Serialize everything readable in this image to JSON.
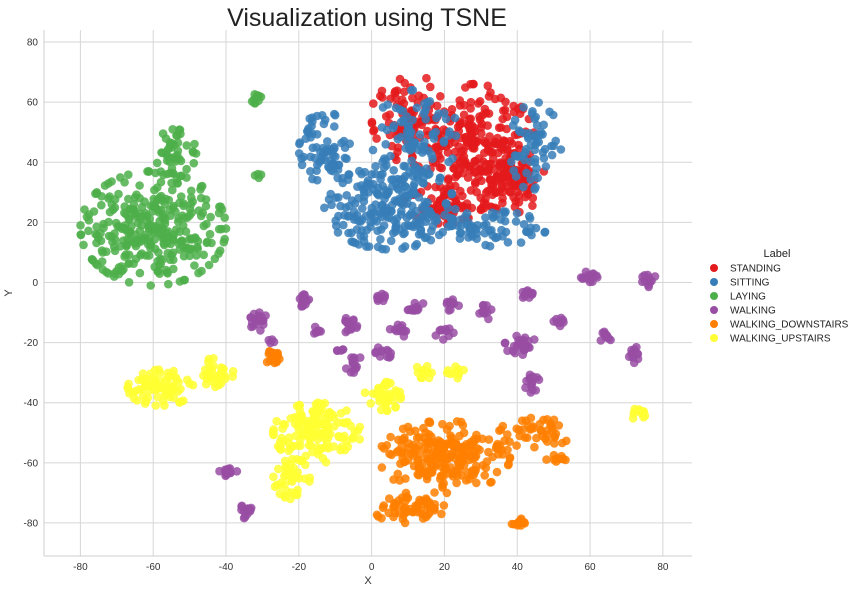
{
  "chart_data": {
    "type": "scatter",
    "title": "Visualization using TSNE",
    "xlabel": "X",
    "ylabel": "Y",
    "xlim": [
      -90,
      88
    ],
    "ylim": [
      -91,
      84
    ],
    "xticks": [
      -80,
      -60,
      -40,
      -20,
      0,
      20,
      40,
      60,
      80
    ],
    "yticks": [
      -80,
      -60,
      -40,
      -20,
      0,
      20,
      40,
      60,
      80
    ],
    "grid": true,
    "legend": {
      "title": "Label",
      "placement": "right"
    },
    "series": [
      {
        "name": "STANDING",
        "color": "#e41a1c",
        "clusters": [
          {
            "cx": 28,
            "cy": 45,
            "rx": 17,
            "ry": 21,
            "n": 260
          },
          {
            "cx": 10,
            "cy": 55,
            "rx": 10,
            "ry": 15,
            "n": 80
          },
          {
            "cx": 38,
            "cy": 35,
            "rx": 10,
            "ry": 12,
            "n": 90
          },
          {
            "cx": 20,
            "cy": 25,
            "rx": 12,
            "ry": 6,
            "n": 60
          }
        ]
      },
      {
        "name": "SITTING",
        "color": "#377eb8",
        "clusters": [
          {
            "cx": 5,
            "cy": 25,
            "rx": 18,
            "ry": 14,
            "n": 220
          },
          {
            "cx": -13,
            "cy": 45,
            "rx": 7,
            "ry": 12,
            "n": 70
          },
          {
            "cx": 12,
            "cy": 48,
            "rx": 12,
            "ry": 16,
            "n": 90
          },
          {
            "cx": 45,
            "cy": 45,
            "rx": 7,
            "ry": 15,
            "n": 60
          },
          {
            "cx": 30,
            "cy": 18,
            "rx": 18,
            "ry": 6,
            "n": 70
          }
        ]
      },
      {
        "name": "LAYING",
        "color": "#4daf4a",
        "clusters": [
          {
            "cx": -60,
            "cy": 18,
            "rx": 20,
            "ry": 19,
            "n": 320
          },
          {
            "cx": -54,
            "cy": 42,
            "rx": 6,
            "ry": 9,
            "n": 45
          },
          {
            "cx": -32,
            "cy": 61,
            "rx": 1.8,
            "ry": 2.5,
            "n": 10
          },
          {
            "cx": -31,
            "cy": 36,
            "rx": 1.5,
            "ry": 1.5,
            "n": 4
          }
        ]
      },
      {
        "name": "WALKING",
        "color": "#984ea3",
        "clusters": [
          {
            "cx": -31,
            "cy": -13,
            "rx": 2.5,
            "ry": 3,
            "n": 20
          },
          {
            "cx": -19,
            "cy": -6,
            "rx": 2,
            "ry": 2.5,
            "n": 15
          },
          {
            "cx": -15,
            "cy": -16,
            "rx": 1.5,
            "ry": 1.5,
            "n": 8
          },
          {
            "cx": -6,
            "cy": -14,
            "rx": 2,
            "ry": 3,
            "n": 15
          },
          {
            "cx": -5,
            "cy": -27,
            "rx": 2.5,
            "ry": 3,
            "n": 15
          },
          {
            "cx": 3,
            "cy": -5,
            "rx": 1.8,
            "ry": 1.5,
            "n": 10
          },
          {
            "cx": 12,
            "cy": -8,
            "rx": 2.5,
            "ry": 2,
            "n": 12
          },
          {
            "cx": 22,
            "cy": -7,
            "rx": 2,
            "ry": 2.5,
            "n": 12
          },
          {
            "cx": 8,
            "cy": -16,
            "rx": 3,
            "ry": 2,
            "n": 12
          },
          {
            "cx": 4,
            "cy": -23,
            "rx": 3,
            "ry": 2,
            "n": 12
          },
          {
            "cx": 20,
            "cy": -17,
            "rx": 2.5,
            "ry": 2,
            "n": 10
          },
          {
            "cx": 31,
            "cy": -10,
            "rx": 2,
            "ry": 2.5,
            "n": 12
          },
          {
            "cx": 42,
            "cy": -4,
            "rx": 2.5,
            "ry": 2,
            "n": 12
          },
          {
            "cx": 41,
            "cy": -21,
            "rx": 4.5,
            "ry": 3.5,
            "n": 30
          },
          {
            "cx": 44,
            "cy": -33,
            "rx": 2,
            "ry": 4,
            "n": 14
          },
          {
            "cx": 52,
            "cy": -13,
            "rx": 2,
            "ry": 1.5,
            "n": 8
          },
          {
            "cx": 60,
            "cy": 2,
            "rx": 2.5,
            "ry": 2,
            "n": 15
          },
          {
            "cx": 76,
            "cy": 1,
            "rx": 2,
            "ry": 2.5,
            "n": 12
          },
          {
            "cx": 64,
            "cy": -18,
            "rx": 2,
            "ry": 2,
            "n": 10
          },
          {
            "cx": 72,
            "cy": -24,
            "rx": 2,
            "ry": 3,
            "n": 12
          },
          {
            "cx": -40,
            "cy": -63,
            "rx": 3,
            "ry": 1.5,
            "n": 15
          },
          {
            "cx": -34,
            "cy": -76,
            "rx": 2,
            "ry": 3,
            "n": 14
          },
          {
            "cx": -28,
            "cy": -20,
            "rx": 1.2,
            "ry": 1.2,
            "n": 4
          },
          {
            "cx": -9,
            "cy": -22,
            "rx": 1.5,
            "ry": 1.5,
            "n": 5
          }
        ]
      },
      {
        "name": "WALKING_DOWNSTAIRS",
        "color": "#ff7f00",
        "clusters": [
          {
            "cx": 20,
            "cy": -58,
            "rx": 18,
            "ry": 12,
            "n": 230
          },
          {
            "cx": 10,
            "cy": -75,
            "rx": 10,
            "ry": 5,
            "n": 60
          },
          {
            "cx": 45,
            "cy": -50,
            "rx": 10,
            "ry": 5,
            "n": 45
          },
          {
            "cx": -27,
            "cy": -25,
            "rx": 3,
            "ry": 2.5,
            "n": 18
          },
          {
            "cx": 40,
            "cy": -80,
            "rx": 3,
            "ry": 1.5,
            "n": 12
          },
          {
            "cx": 50,
            "cy": -58,
            "rx": 4,
            "ry": 2,
            "n": 10
          }
        ]
      },
      {
        "name": "WALKING_UPSTAIRS",
        "color": "#ffff33",
        "clusters": [
          {
            "cx": -58,
            "cy": -35,
            "rx": 9,
            "ry": 6,
            "n": 80
          },
          {
            "cx": -43,
            "cy": -30,
            "rx": 5,
            "ry": 5,
            "n": 35
          },
          {
            "cx": -15,
            "cy": -50,
            "rx": 12,
            "ry": 10,
            "n": 150
          },
          {
            "cx": -22,
            "cy": -65,
            "rx": 5,
            "ry": 7,
            "n": 40
          },
          {
            "cx": 3,
            "cy": -38,
            "rx": 5,
            "ry": 5,
            "n": 40
          },
          {
            "cx": 14,
            "cy": -30,
            "rx": 2.5,
            "ry": 2.5,
            "n": 12
          },
          {
            "cx": 23,
            "cy": -30,
            "rx": 3,
            "ry": 2,
            "n": 10
          },
          {
            "cx": 73,
            "cy": -43,
            "rx": 2.5,
            "ry": 2.5,
            "n": 12
          }
        ]
      }
    ]
  }
}
